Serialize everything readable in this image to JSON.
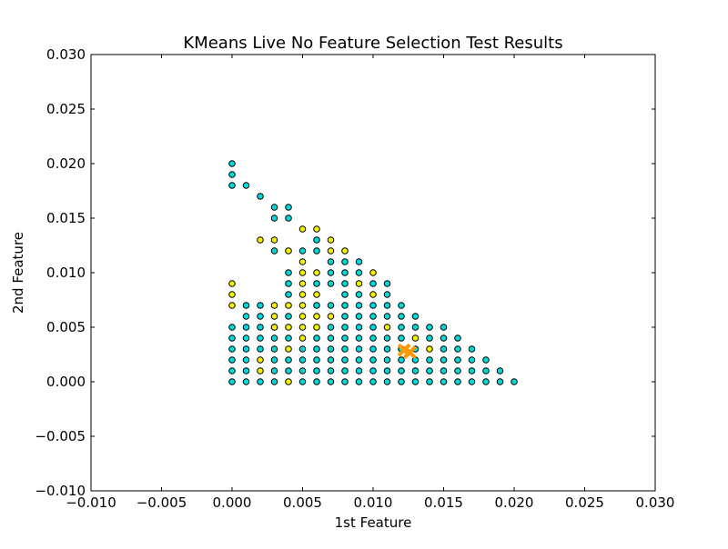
{
  "chart_data": {
    "type": "scatter",
    "title": "KMeans Live No Feature Selection Test Results",
    "xlabel": "1st Feature",
    "ylabel": "2nd Feature",
    "xlim": [
      -0.01,
      0.03
    ],
    "ylim": [
      -0.01,
      0.03
    ],
    "xticks": [
      -0.01,
      -0.005,
      0.0,
      0.005,
      0.01,
      0.015,
      0.02,
      0.025,
      0.03
    ],
    "yticks": [
      -0.01,
      -0.005,
      0.0,
      0.005,
      0.01,
      0.015,
      0.02,
      0.025,
      0.03
    ],
    "xtick_labels": [
      "−0.010",
      "−0.005",
      "0.000",
      "0.005",
      "0.010",
      "0.015",
      "0.020",
      "0.025",
      "0.030"
    ],
    "ytick_labels": [
      "−0.010",
      "−0.005",
      "0.000",
      "0.005",
      "0.010",
      "0.015",
      "0.020",
      "0.025",
      "0.030"
    ],
    "grid": false,
    "legend": "none",
    "colors": {
      "cluster_a": "#00d8d8",
      "cluster_b": "#f0f000",
      "centroid": "#ff9900",
      "edge": "#000000"
    },
    "series": [
      {
        "points": [
          [
            0.0,
            0.02
          ],
          [
            0.0,
            0.019
          ],
          [
            0.0,
            0.018
          ],
          [
            0.001,
            0.018
          ],
          [
            0.002,
            0.017
          ],
          [
            0.003,
            0.016
          ],
          [
            0.004,
            0.016
          ],
          [
            0.003,
            0.015
          ],
          [
            0.004,
            0.015
          ],
          [
            0.003,
            0.012
          ],
          [
            0.006,
            0.013
          ],
          [
            0.006,
            0.012
          ],
          [
            0.004,
            0.01
          ],
          [
            0.004,
            0.009
          ],
          [
            0.004,
            0.008
          ],
          [
            0.006,
            0.009
          ],
          [
            0.005,
            0.012
          ],
          [
            0.007,
            0.011
          ],
          [
            0.007,
            0.01
          ],
          [
            0.008,
            0.01
          ],
          [
            0.008,
            0.011
          ],
          [
            0.009,
            0.011
          ],
          [
            0.007,
            0.009
          ],
          [
            0.008,
            0.009
          ],
          [
            0.009,
            0.01
          ],
          [
            0.01,
            0.009
          ],
          [
            0.011,
            0.009
          ],
          [
            0.008,
            0.008
          ],
          [
            0.009,
            0.008
          ],
          [
            0.011,
            0.008
          ],
          [
            0.006,
            0.007
          ],
          [
            0.007,
            0.007
          ],
          [
            0.008,
            0.007
          ],
          [
            0.009,
            0.007
          ],
          [
            0.01,
            0.007
          ],
          [
            0.011,
            0.007
          ],
          [
            0.012,
            0.007
          ],
          [
            0.0,
            0.005
          ],
          [
            0.001,
            0.007
          ],
          [
            0.002,
            0.007
          ],
          [
            0.001,
            0.006
          ],
          [
            0.002,
            0.006
          ],
          [
            0.004,
            0.006
          ],
          [
            0.008,
            0.006
          ],
          [
            0.009,
            0.006
          ],
          [
            0.01,
            0.006
          ],
          [
            0.011,
            0.006
          ],
          [
            0.012,
            0.006
          ],
          [
            0.013,
            0.006
          ],
          [
            0.001,
            0.005
          ],
          [
            0.002,
            0.005
          ],
          [
            0.003,
            0.005
          ],
          [
            0.007,
            0.005
          ],
          [
            0.008,
            0.005
          ],
          [
            0.009,
            0.005
          ],
          [
            0.01,
            0.005
          ],
          [
            0.012,
            0.005
          ],
          [
            0.013,
            0.005
          ],
          [
            0.014,
            0.005
          ],
          [
            0.015,
            0.005
          ],
          [
            0.0,
            0.004
          ],
          [
            0.001,
            0.004
          ],
          [
            0.002,
            0.004
          ],
          [
            0.003,
            0.004
          ],
          [
            0.004,
            0.004
          ],
          [
            0.006,
            0.004
          ],
          [
            0.007,
            0.004
          ],
          [
            0.008,
            0.004
          ],
          [
            0.009,
            0.004
          ],
          [
            0.01,
            0.004
          ],
          [
            0.011,
            0.004
          ],
          [
            0.012,
            0.004
          ],
          [
            0.014,
            0.004
          ],
          [
            0.015,
            0.004
          ],
          [
            0.016,
            0.004
          ],
          [
            0.0,
            0.003
          ],
          [
            0.001,
            0.003
          ],
          [
            0.002,
            0.003
          ],
          [
            0.003,
            0.003
          ],
          [
            0.005,
            0.003
          ],
          [
            0.006,
            0.003
          ],
          [
            0.007,
            0.003
          ],
          [
            0.008,
            0.003
          ],
          [
            0.009,
            0.003
          ],
          [
            0.01,
            0.003
          ],
          [
            0.011,
            0.003
          ],
          [
            0.012,
            0.003
          ],
          [
            0.013,
            0.003
          ],
          [
            0.015,
            0.003
          ],
          [
            0.016,
            0.003
          ],
          [
            0.017,
            0.003
          ],
          [
            0.0,
            0.002
          ],
          [
            0.001,
            0.002
          ],
          [
            0.003,
            0.002
          ],
          [
            0.004,
            0.002
          ],
          [
            0.005,
            0.002
          ],
          [
            0.006,
            0.002
          ],
          [
            0.007,
            0.002
          ],
          [
            0.008,
            0.002
          ],
          [
            0.009,
            0.002
          ],
          [
            0.01,
            0.002
          ],
          [
            0.011,
            0.002
          ],
          [
            0.012,
            0.002
          ],
          [
            0.013,
            0.002
          ],
          [
            0.014,
            0.002
          ],
          [
            0.015,
            0.002
          ],
          [
            0.016,
            0.002
          ],
          [
            0.017,
            0.002
          ],
          [
            0.018,
            0.002
          ],
          [
            0.0,
            0.001
          ],
          [
            0.001,
            0.001
          ],
          [
            0.003,
            0.001
          ],
          [
            0.004,
            0.001
          ],
          [
            0.005,
            0.001
          ],
          [
            0.006,
            0.001
          ],
          [
            0.007,
            0.001
          ],
          [
            0.008,
            0.001
          ],
          [
            0.009,
            0.001
          ],
          [
            0.01,
            0.001
          ],
          [
            0.011,
            0.001
          ],
          [
            0.012,
            0.001
          ],
          [
            0.013,
            0.001
          ],
          [
            0.014,
            0.001
          ],
          [
            0.015,
            0.001
          ],
          [
            0.016,
            0.001
          ],
          [
            0.017,
            0.001
          ],
          [
            0.018,
            0.001
          ],
          [
            0.019,
            0.001
          ],
          [
            0.0,
            0.0
          ],
          [
            0.001,
            0.0
          ],
          [
            0.002,
            0.0
          ],
          [
            0.003,
            0.0
          ],
          [
            0.005,
            0.0
          ],
          [
            0.006,
            0.0
          ],
          [
            0.007,
            0.0
          ],
          [
            0.008,
            0.0
          ],
          [
            0.009,
            0.0
          ],
          [
            0.01,
            0.0
          ],
          [
            0.011,
            0.0
          ],
          [
            0.012,
            0.0
          ],
          [
            0.013,
            0.0
          ],
          [
            0.014,
            0.0
          ],
          [
            0.015,
            0.0
          ],
          [
            0.016,
            0.0
          ],
          [
            0.017,
            0.0
          ],
          [
            0.018,
            0.0
          ],
          [
            0.019,
            0.0
          ],
          [
            0.02,
            0.0
          ]
        ]
      },
      {
        "points": [
          [
            0.002,
            0.013
          ],
          [
            0.003,
            0.013
          ],
          [
            0.005,
            0.014
          ],
          [
            0.006,
            0.014
          ],
          [
            0.007,
            0.013
          ],
          [
            0.004,
            0.012
          ],
          [
            0.007,
            0.012
          ],
          [
            0.008,
            0.012
          ],
          [
            0.005,
            0.011
          ],
          [
            0.01,
            0.01
          ],
          [
            0.005,
            0.01
          ],
          [
            0.005,
            0.009
          ],
          [
            0.006,
            0.01
          ],
          [
            0.009,
            0.009
          ],
          [
            0.005,
            0.008
          ],
          [
            0.006,
            0.008
          ],
          [
            0.01,
            0.008
          ],
          [
            0.0,
            0.009
          ],
          [
            0.0,
            0.008
          ],
          [
            0.0,
            0.007
          ],
          [
            0.003,
            0.007
          ],
          [
            0.004,
            0.007
          ],
          [
            0.005,
            0.007
          ],
          [
            0.003,
            0.006
          ],
          [
            0.005,
            0.006
          ],
          [
            0.006,
            0.006
          ],
          [
            0.007,
            0.006
          ],
          [
            0.003,
            0.005
          ],
          [
            0.004,
            0.005
          ],
          [
            0.005,
            0.005
          ],
          [
            0.006,
            0.005
          ],
          [
            0.011,
            0.005
          ],
          [
            0.005,
            0.004
          ],
          [
            0.013,
            0.004
          ],
          [
            0.004,
            0.003
          ],
          [
            0.014,
            0.003
          ],
          [
            0.002,
            0.002
          ],
          [
            0.002,
            0.001
          ],
          [
            0.004,
            0.0
          ]
        ]
      }
    ],
    "centroids": [
      [
        0.0122,
        0.0029
      ],
      [
        0.0126,
        0.0027
      ]
    ]
  }
}
